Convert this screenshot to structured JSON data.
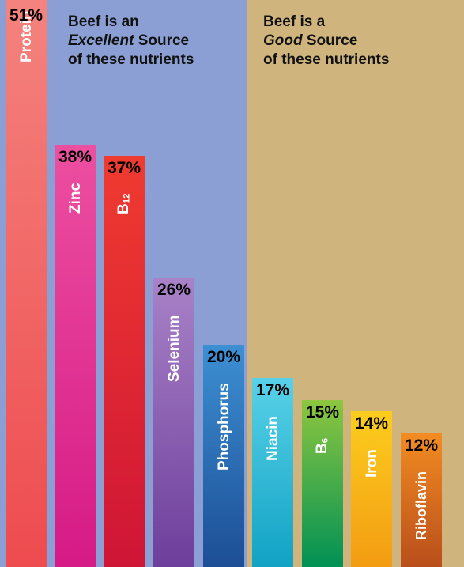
{
  "chart_data": {
    "type": "bar",
    "categories": [
      "Protein",
      "Zinc",
      "B12",
      "Selenium",
      "Phosphorus",
      "Niacin",
      "B6",
      "Iron",
      "Riboflavin"
    ],
    "values": [
      51,
      38,
      37,
      26,
      20,
      17,
      15,
      14,
      12
    ],
    "value_labels": [
      "51%",
      "38%",
      "37%",
      "26%",
      "20%",
      "17%",
      "15%",
      "14%",
      "12%"
    ],
    "bars": [
      {
        "name": "Protein",
        "sub": "",
        "pct": "51%",
        "value": 51,
        "color_top": "#f4837e",
        "color_bottom": "#ee4b4f",
        "label_size": 19
      },
      {
        "name": "Zinc",
        "sub": "",
        "pct": "38%",
        "value": 38,
        "color_top": "#ec4fa0",
        "color_bottom": "#d61a86",
        "label_size": 19
      },
      {
        "name": "B",
        "sub": "12",
        "pct": "37%",
        "value": 37,
        "color_top": "#ef3b30",
        "color_bottom": "#cf1536",
        "label_size": 19
      },
      {
        "name": "Selenium",
        "sub": "",
        "pct": "26%",
        "value": 26,
        "color_top": "#a982c8",
        "color_bottom": "#6d3e9b",
        "label_size": 19
      },
      {
        "name": "Phosphorus",
        "sub": "",
        "pct": "20%",
        "value": 20,
        "color_top": "#3d8fd3",
        "color_bottom": "#1c4e95",
        "label_size": 19
      },
      {
        "name": "Niacin",
        "sub": "",
        "pct": "17%",
        "value": 17,
        "color_top": "#58d1e8",
        "color_bottom": "#11a2c4",
        "label_size": 19
      },
      {
        "name": "B",
        "sub": "6",
        "pct": "15%",
        "value": 15,
        "color_top": "#8dc63f",
        "color_bottom": "#009155",
        "label_size": 19
      },
      {
        "name": "Iron",
        "sub": "",
        "pct": "14%",
        "value": 14,
        "color_top": "#fccd1e",
        "color_bottom": "#f39c12",
        "label_size": 19
      },
      {
        "name": "Riboflavin",
        "sub": "",
        "pct": "12%",
        "value": 12,
        "color_top": "#f28c22",
        "color_bottom": "#b94e1b",
        "label_size": 18
      }
    ],
    "groups": [
      {
        "lines": [
          "Beef is an",
          "Excellent Source",
          "of these nutrients"
        ],
        "italic_word": "Excellent",
        "bg": "#8b9fd4"
      },
      {
        "lines": [
          "Beef is a",
          "Good Source",
          "of these nutrients"
        ],
        "italic_word": "Good",
        "bg": "#cfb57d"
      }
    ]
  }
}
